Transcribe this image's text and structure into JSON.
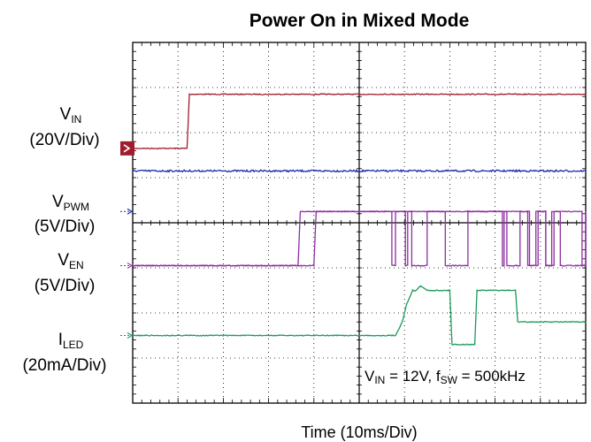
{
  "chart_data": {
    "type": "line",
    "title": "Power On in Mixed Mode",
    "xlabel": "Time (10ms/Div)",
    "x_divisions": 10,
    "y_divisions": 8,
    "annotation": {
      "prefix": "V",
      "prefix_sub": "IN",
      "mid": " = 12V, f",
      "mid_sub": "SW",
      "suffix": " = 500kHz"
    },
    "series": [
      {
        "name": "VIN",
        "label_main": "V",
        "label_sub": "IN",
        "scale": "(20V/Div)",
        "color": "#a01c2c",
        "marker": "red-box",
        "marker_div": 2.35,
        "t": [
          0,
          1.2,
          1.25,
          10
        ],
        "div": [
          2.35,
          2.35,
          1.15,
          1.15
        ],
        "noise": 0.02
      },
      {
        "name": "blue-trace",
        "color": "#1a2aa8",
        "t": [
          0,
          10
        ],
        "div": [
          2.85,
          2.85
        ],
        "noise": 0.04
      },
      {
        "name": "VPWM",
        "label_main": "V",
        "label_sub": "PWM",
        "scale": "(5V/Div)",
        "color": "#8e2ea0",
        "marker": "blue-arrow",
        "marker_div": 3.75,
        "t": [
          0,
          3.65,
          3.7,
          10
        ],
        "div": [
          4.95,
          4.95,
          3.75,
          3.75
        ],
        "gaps": [
          [
            8.7,
            8.9
          ],
          [
            9.1,
            9.25
          ],
          [
            9.9,
            10.0
          ]
        ],
        "noise": 0.015
      },
      {
        "name": "VEN",
        "label_main": "V",
        "label_sub": "EN",
        "scale": "(5V/Div)",
        "color": "#8e2ea0",
        "marker": "purple-arrow",
        "marker_div": 4.95,
        "t": [
          0,
          4.0,
          4.05,
          10
        ],
        "div": [
          4.95,
          4.95,
          3.75,
          3.75
        ],
        "gaps": [
          [
            5.7,
            5.8
          ],
          [
            6.0,
            6.07
          ],
          [
            6.15,
            6.5
          ],
          [
            6.88,
            7.4
          ],
          [
            8.15,
            8.2
          ],
          [
            8.25,
            8.55
          ],
          [
            8.75,
            8.95
          ],
          [
            9.1,
            9.3
          ],
          [
            9.43,
            10.0
          ]
        ],
        "noise": 0.02
      },
      {
        "name": "ILED",
        "label_main": "I",
        "label_sub": "LED",
        "scale": "(20mA/Div)",
        "color": "#1a9a5a",
        "marker": "green-arrow",
        "marker_div": 6.5,
        "t": [
          0,
          5.8,
          5.95,
          6.05,
          6.18,
          6.25,
          6.35,
          6.5,
          7.0,
          7.05,
          7.55,
          7.6,
          8.45,
          8.5,
          10
        ],
        "div": [
          6.5,
          6.5,
          6.2,
          5.8,
          5.5,
          5.5,
          5.4,
          5.5,
          5.5,
          6.7,
          6.7,
          5.5,
          5.5,
          6.2,
          6.2
        ],
        "noise": 0.02
      }
    ]
  }
}
